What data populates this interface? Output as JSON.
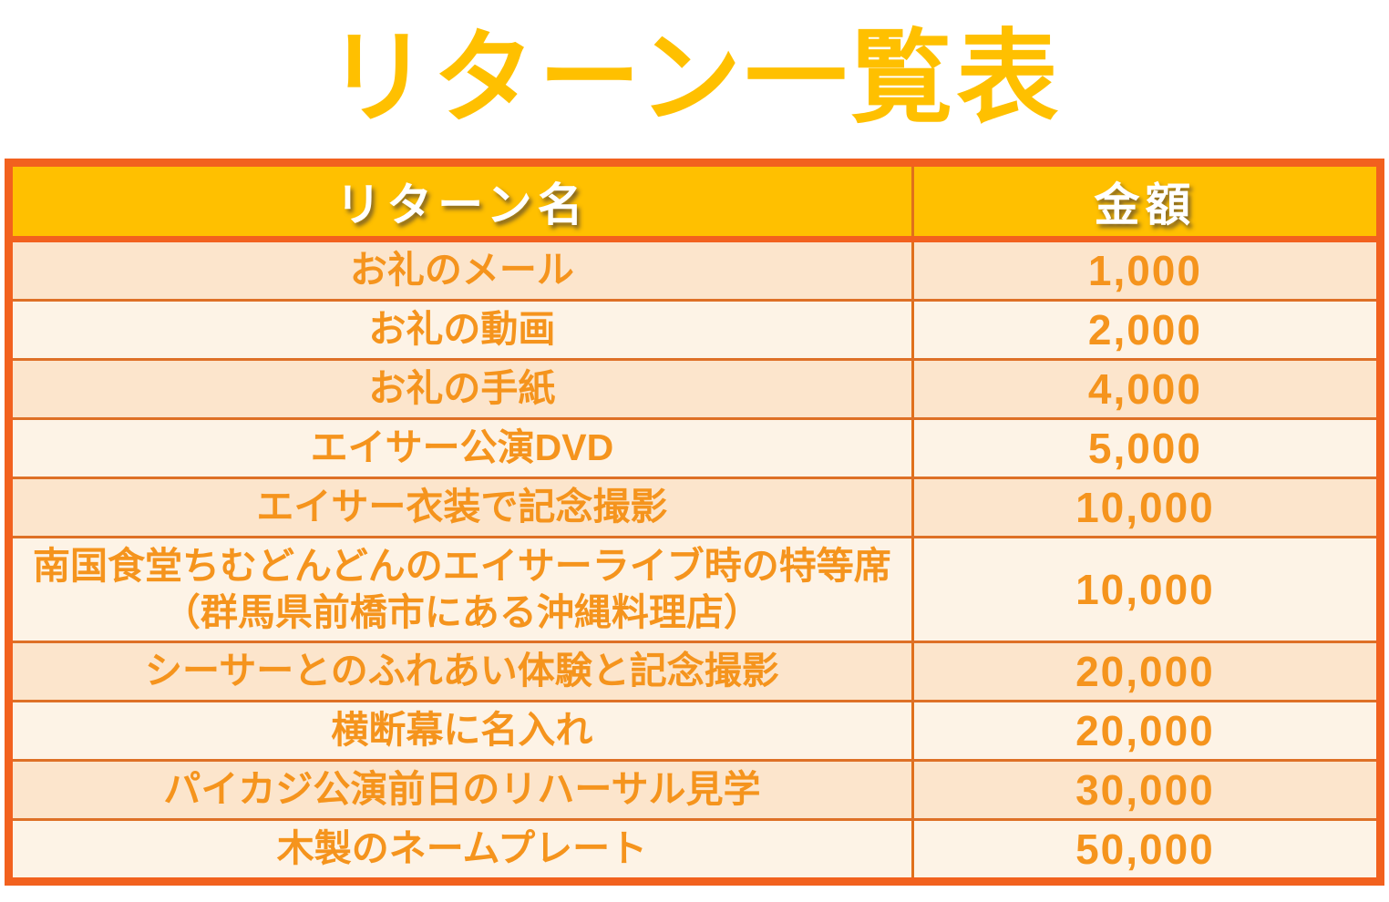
{
  "title": "リターン一覧表",
  "chart_data": {
    "type": "table",
    "title": "リターン一覧表",
    "columns": [
      "リターン名",
      "金額"
    ],
    "rows": [
      {
        "name": "お礼のメール",
        "amount": "1,000",
        "amount_value": 1000
      },
      {
        "name": "お礼の動画",
        "amount": "2,000",
        "amount_value": 2000
      },
      {
        "name": "お礼の手紙",
        "amount": "4,000",
        "amount_value": 4000
      },
      {
        "name": "エイサー公演DVD",
        "amount": "5,000",
        "amount_value": 5000
      },
      {
        "name": "エイサー衣装で記念撮影",
        "amount": "10,000",
        "amount_value": 10000
      },
      {
        "name": "南国食堂ちむどんどんのエイサーライブ時の特等席\n（群馬県前橋市にある沖縄料理店）",
        "amount": "10,000",
        "amount_value": 10000
      },
      {
        "name": "シーサーとのふれあい体験と記念撮影",
        "amount": "20,000",
        "amount_value": 20000
      },
      {
        "name": "横断幕に名入れ",
        "amount": "20,000",
        "amount_value": 20000
      },
      {
        "name": "パイカジ公演前日のリハーサル見学",
        "amount": "30,000",
        "amount_value": 30000
      },
      {
        "name": "木製のネームプレート",
        "amount": "50,000",
        "amount_value": 50000
      }
    ]
  },
  "colors": {
    "title_gold": "#FFC000",
    "header_bg": "#FFC000",
    "header_text": "#FFFFFF",
    "outer_border": "#F2611E",
    "row_divider": "#DE7026",
    "column_divider": "#E0701C",
    "row_peach": "#FCE5CC",
    "row_cream": "#FDF3E6",
    "cell_text": "#F5941D"
  }
}
